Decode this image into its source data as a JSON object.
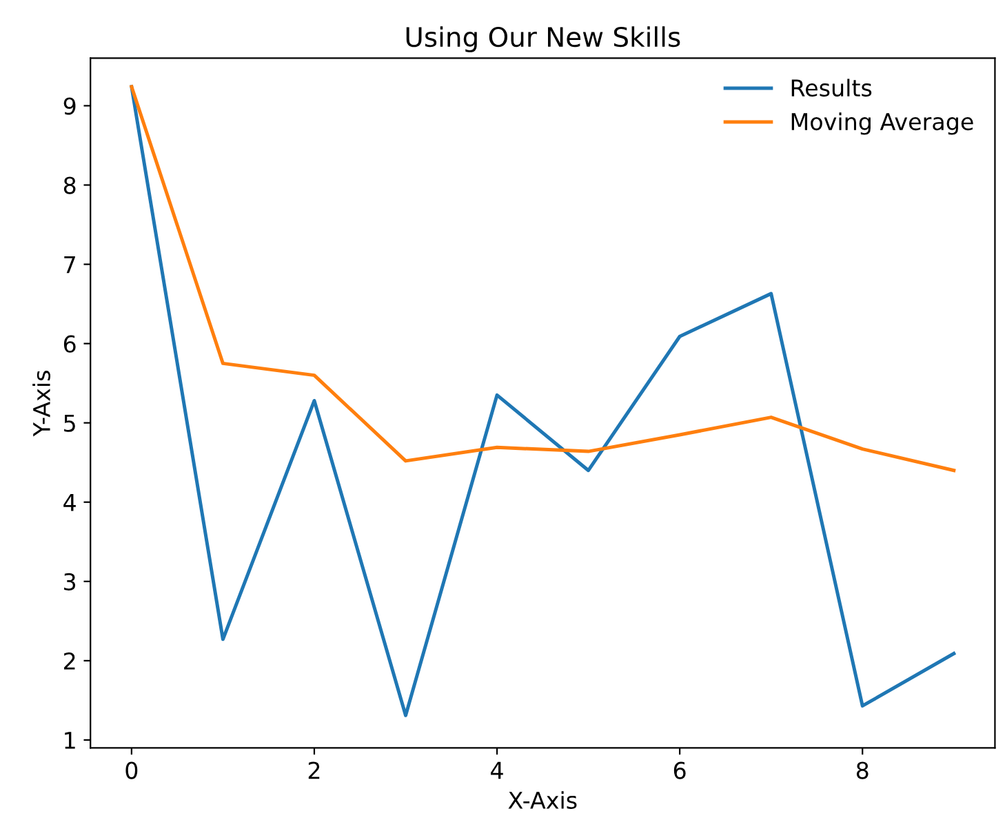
{
  "chart_data": {
    "type": "line",
    "title": "Using Our New Skills",
    "xlabel": "X-Axis",
    "ylabel": "Y-Axis",
    "x": [
      0,
      1,
      2,
      3,
      4,
      5,
      6,
      7,
      8,
      9
    ],
    "series": [
      {
        "name": "Results",
        "color": "#1f77b4",
        "values": [
          9.24,
          2.27,
          5.28,
          1.31,
          5.35,
          4.4,
          6.09,
          6.63,
          1.43,
          2.09
        ]
      },
      {
        "name": "Moving Average",
        "color": "#ff7f0e",
        "values": [
          9.24,
          5.75,
          5.6,
          4.52,
          4.69,
          4.64,
          4.85,
          5.07,
          4.67,
          4.4
        ]
      }
    ],
    "xlim": [
      -0.45,
      9.45
    ],
    "ylim": [
      0.9,
      9.6
    ],
    "xticks": [
      0,
      2,
      4,
      6,
      8
    ],
    "yticks": [
      1,
      2,
      3,
      4,
      5,
      6,
      7,
      8,
      9
    ],
    "grid": false,
    "legend": "top right"
  }
}
